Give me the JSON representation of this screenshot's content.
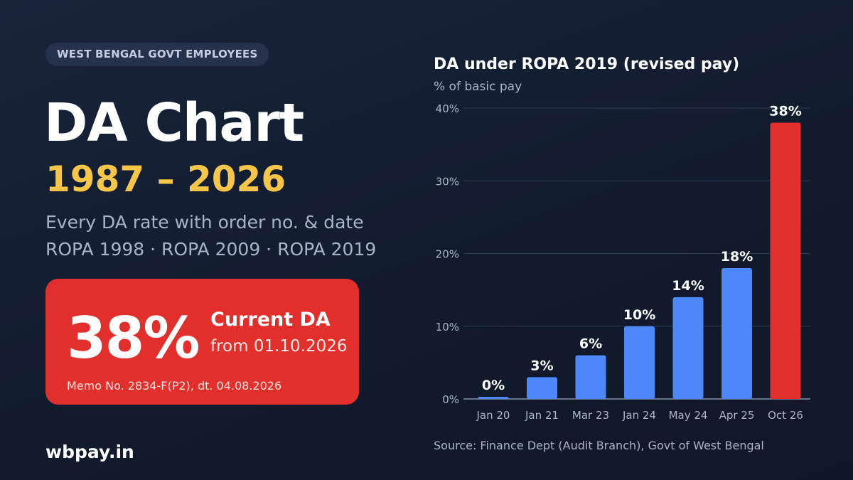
{
  "badge": "WEST BENGAL GOVT EMPLOYEES",
  "headline": {
    "title": "DA Chart",
    "years": "1987 – 2026",
    "subtitle_line1": "Every DA rate with order no. & date",
    "subtitle_line2": "ROPA 1998 · ROPA 2009 · ROPA 2019"
  },
  "current": {
    "value": "38%",
    "label": "Current DA",
    "date": "from 01.10.2026",
    "memo": "Memo No. 2834-F(P2), dt. 04.08.2026"
  },
  "site": "wbpay.in",
  "colors": {
    "bar": "#4d88fb",
    "highlight": "#e32f2c",
    "accent": "#f6c648"
  },
  "chart_data": {
    "type": "bar",
    "title": "DA under ROPA 2019 (revised pay)",
    "ylabel": "% of basic pay",
    "xlabel": "",
    "categories": [
      "Jan 20",
      "Jan 21",
      "Mar 23",
      "Jan 24",
      "May 24",
      "Apr 25",
      "Oct 26"
    ],
    "values": [
      0,
      3,
      6,
      10,
      14,
      18,
      38
    ],
    "value_labels": [
      "0%",
      "3%",
      "6%",
      "10%",
      "14%",
      "18%",
      "38%"
    ],
    "ylim": [
      0,
      40
    ],
    "yticks": [
      0,
      10,
      20,
      30,
      40
    ],
    "ytick_labels": [
      "0%",
      "10%",
      "20%",
      "30%",
      "40%"
    ],
    "highlight_index": 6,
    "grid": true,
    "legend": "none"
  },
  "source": "Source: Finance Dept (Audit Branch), Govt of West Bengal"
}
